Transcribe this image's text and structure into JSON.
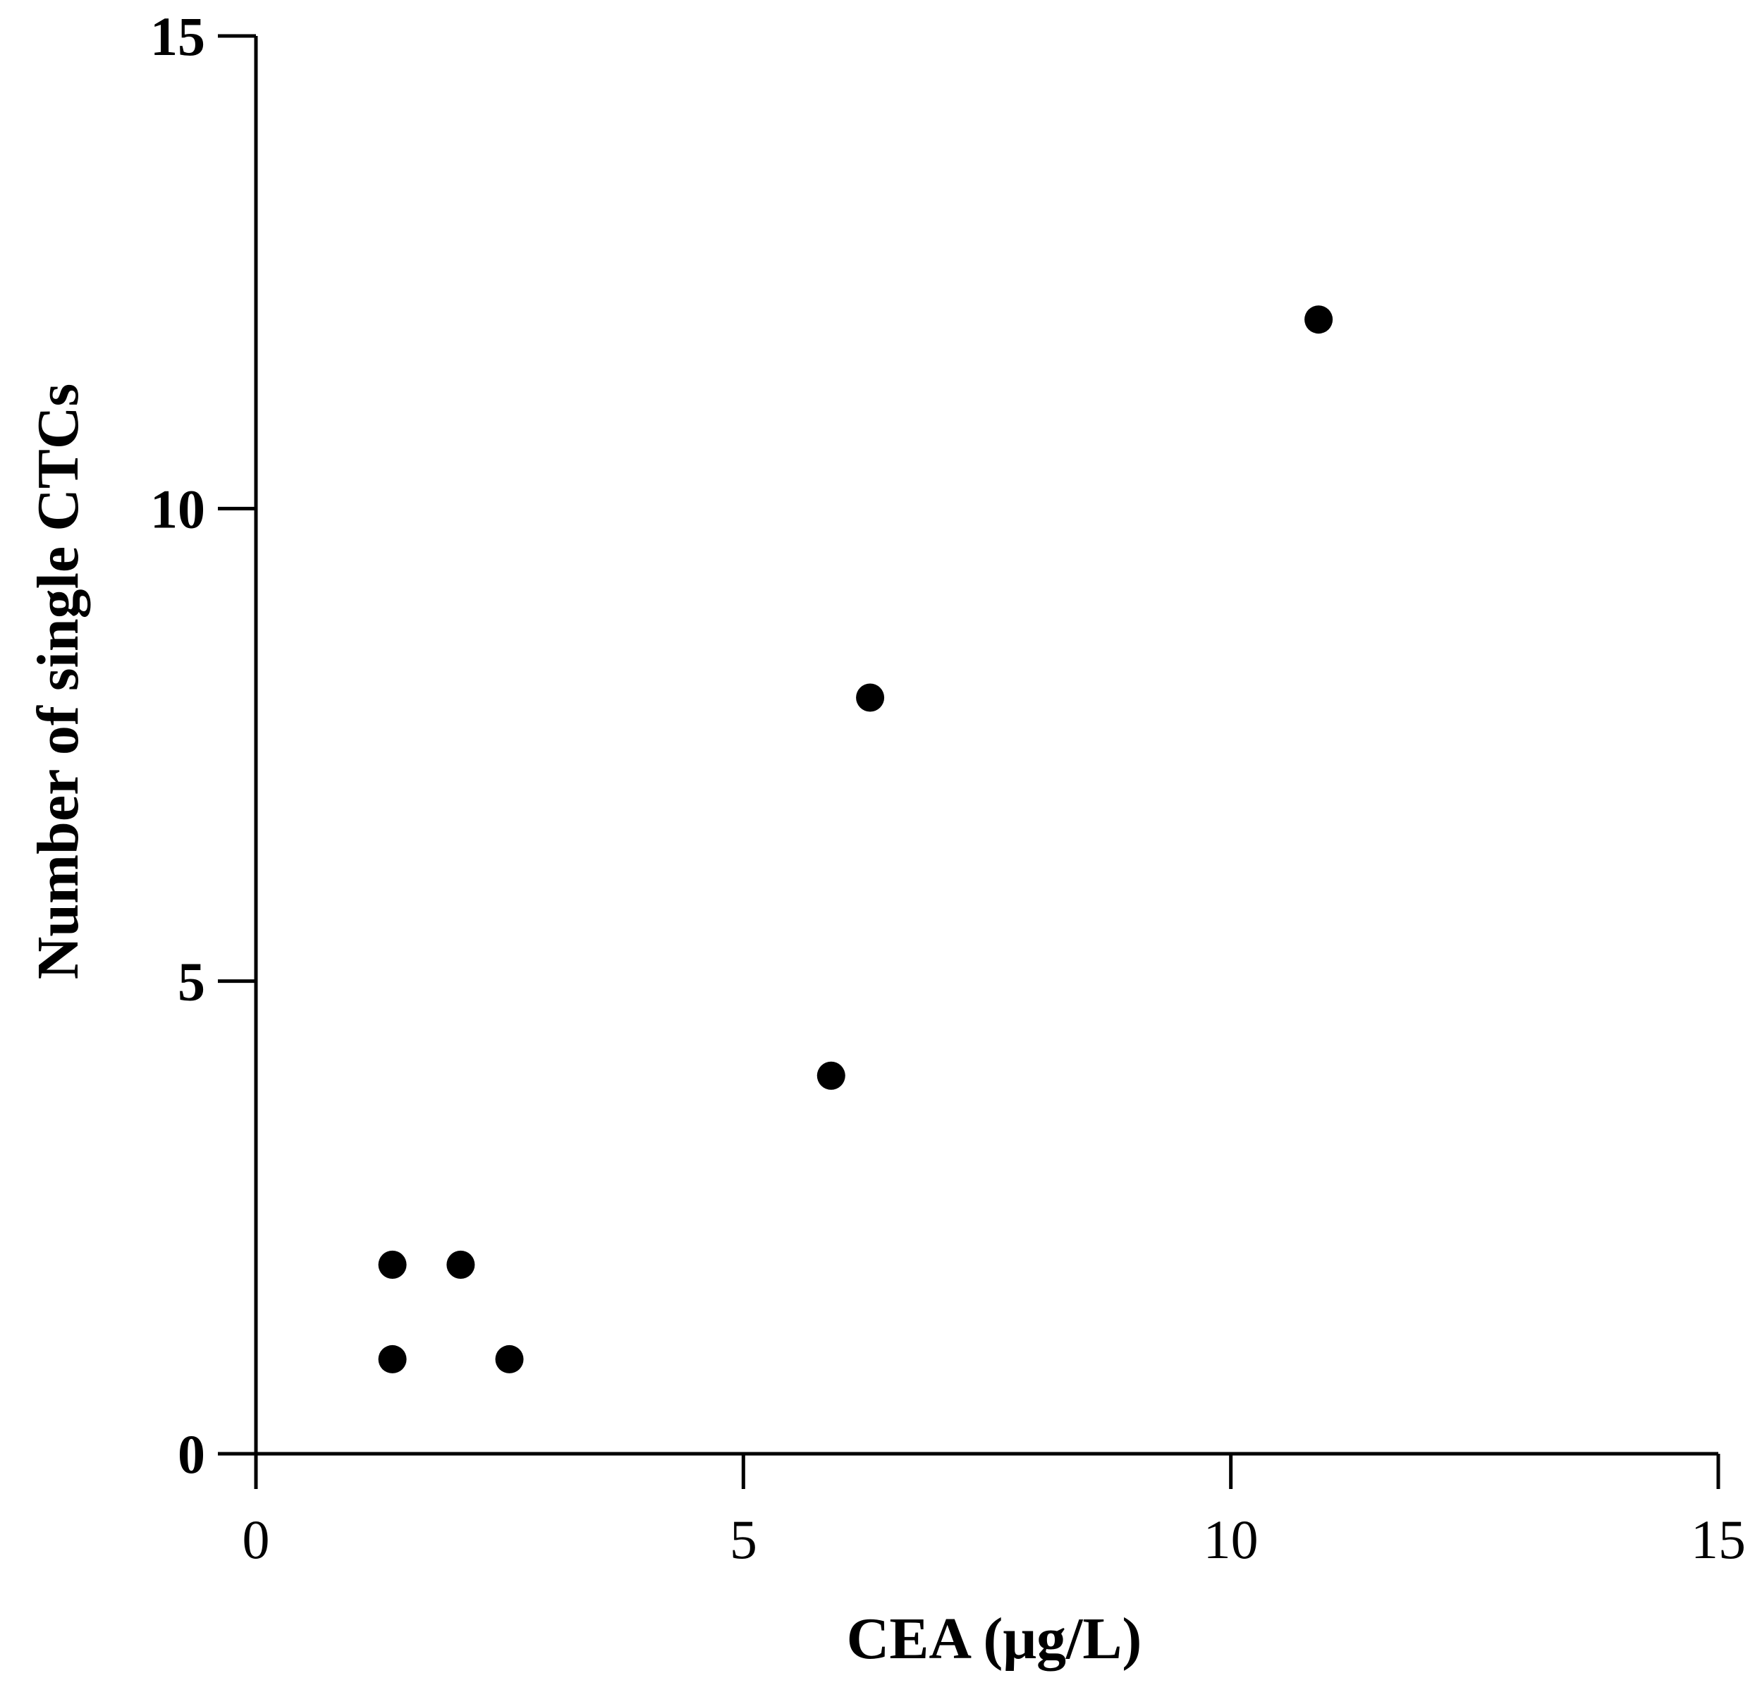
{
  "chart_data": {
    "type": "scatter",
    "xlabel": "CEA (μg/L)",
    "ylabel": "Number of single CTCs",
    "xlim": [
      0,
      15
    ],
    "ylim": [
      0,
      15
    ],
    "xticks": [
      0,
      5,
      10,
      15
    ],
    "yticks": [
      0,
      5,
      10,
      15
    ],
    "grid": false,
    "marker_color": "#000000",
    "points": [
      {
        "x": 1.4,
        "y": 1
      },
      {
        "x": 2.6,
        "y": 1
      },
      {
        "x": 1.4,
        "y": 2
      },
      {
        "x": 2.1,
        "y": 2
      },
      {
        "x": 5.9,
        "y": 4
      },
      {
        "x": 6.3,
        "y": 8
      },
      {
        "x": 10.9,
        "y": 12
      }
    ]
  }
}
